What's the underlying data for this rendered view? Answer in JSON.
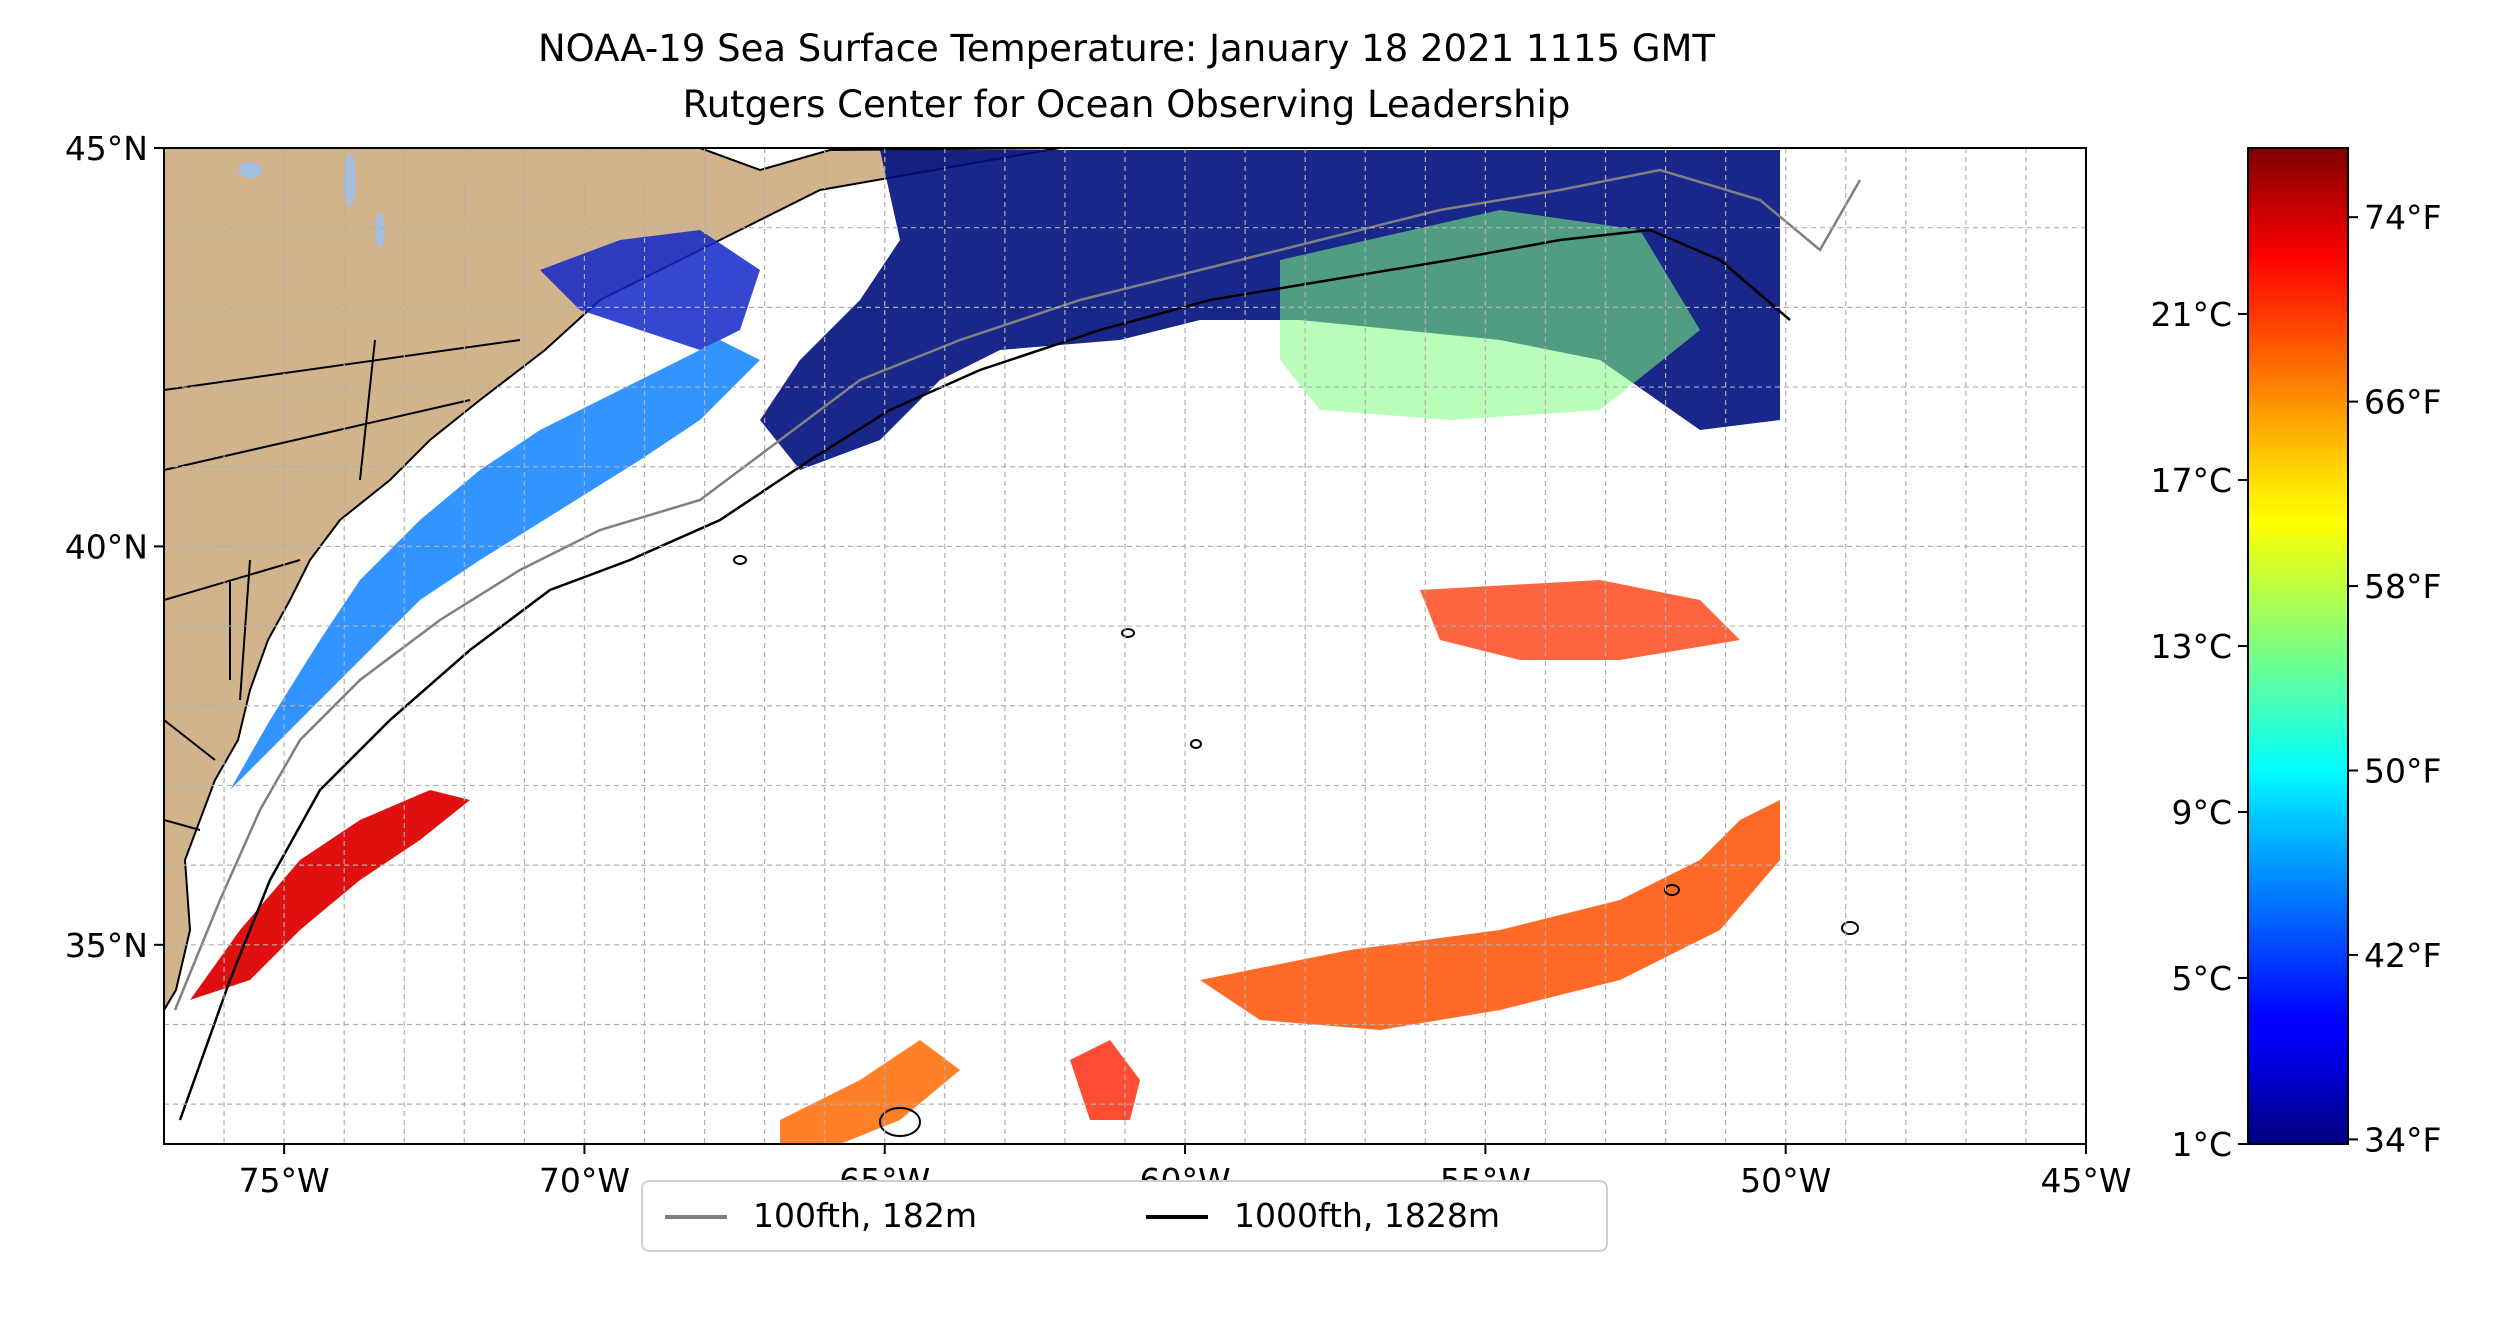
{
  "title_line1": "NOAA-19 Sea Surface Temperature: January 18 2021 1115 GMT",
  "title_line2": "Rutgers Center for Ocean Observing Leadership",
  "map": {
    "lon_range": [
      -77,
      -45
    ],
    "lat_range": [
      32.5,
      45
    ],
    "lon_ticks": [
      {
        "value": -75,
        "label": "75°W"
      },
      {
        "value": -70,
        "label": "70°W"
      },
      {
        "value": -65,
        "label": "65°W"
      },
      {
        "value": -60,
        "label": "60°W"
      },
      {
        "value": -55,
        "label": "55°W"
      },
      {
        "value": -50,
        "label": "50°W"
      },
      {
        "value": -45,
        "label": "45°W"
      }
    ],
    "lat_ticks": [
      {
        "value": 45,
        "label": "45°N"
      },
      {
        "value": 40,
        "label": "40°N"
      },
      {
        "value": 35,
        "label": "35°N"
      }
    ],
    "gridlines": "dashed",
    "colors": {
      "land": "#d2b48c",
      "lakes": "#a5bfdd",
      "isobath_100fth": "#808080",
      "isobath_1000fth": "#000000",
      "gridline": "#b0b0b0"
    }
  },
  "colorbar": {
    "colormap": "jet",
    "range_fahrenheit": [
      33.8,
      77
    ],
    "ticks_celsius": [
      {
        "value": 1,
        "label": "1°C"
      },
      {
        "value": 5,
        "label": "5°C"
      },
      {
        "value": 9,
        "label": "9°C"
      },
      {
        "value": 13,
        "label": "13°C"
      },
      {
        "value": 17,
        "label": "17°C"
      },
      {
        "value": 21,
        "label": "21°C"
      }
    ],
    "ticks_fahrenheit": [
      {
        "value": 34,
        "label": "34°F"
      },
      {
        "value": 42,
        "label": "42°F"
      },
      {
        "value": 50,
        "label": "50°F"
      },
      {
        "value": 58,
        "label": "58°F"
      },
      {
        "value": 66,
        "label": "66°F"
      },
      {
        "value": 74,
        "label": "74°F"
      }
    ]
  },
  "legend": {
    "items": [
      {
        "label": "100fth, 182m",
        "color": "#808080"
      },
      {
        "label": "1000fth, 1828m",
        "color": "#000000"
      }
    ]
  }
}
